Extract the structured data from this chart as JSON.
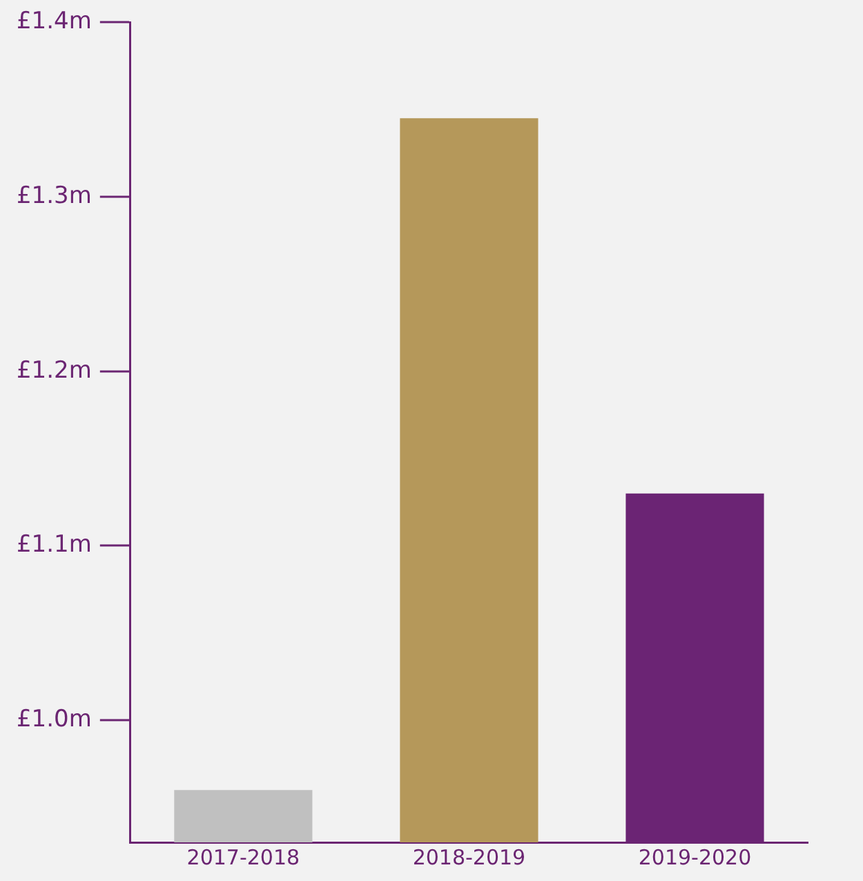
{
  "chart_data": {
    "type": "bar",
    "categories": [
      "2017-2018",
      "2018-2019",
      "2019-2020"
    ],
    "values": [
      0.96,
      1.345,
      1.13
    ],
    "colors": [
      "#c0c0c0",
      "#b5985a",
      "#6b2474"
    ],
    "ylim": [
      0.93,
      1.4
    ],
    "yticks": [
      {
        "value": 1.0,
        "label": "£1.0m"
      },
      {
        "value": 1.1,
        "label": "£1.1m"
      },
      {
        "value": 1.2,
        "label": "£1.2m"
      },
      {
        "value": 1.3,
        "label": "£1.3m"
      },
      {
        "value": 1.4,
        "label": "£1.4m"
      }
    ],
    "grid": false,
    "legend": false
  }
}
